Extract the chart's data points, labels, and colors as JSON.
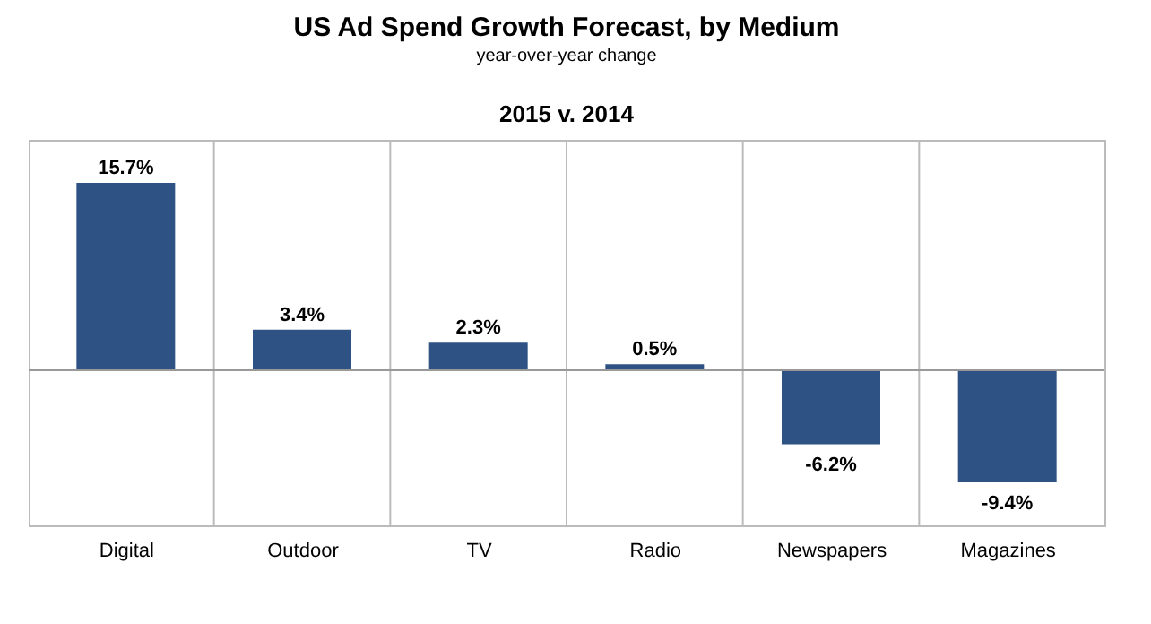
{
  "chart_data": {
    "type": "bar",
    "title": "US Ad Spend Growth Forecast, by Medium",
    "subtitle": "year-over-year change",
    "annotations": [
      "2015 v. 2014"
    ],
    "categories": [
      "Digital",
      "Outdoor",
      "TV",
      "Radio",
      "Newspapers",
      "Magazines"
    ],
    "values": [
      15.7,
      3.4,
      2.3,
      0.5,
      -6.2,
      -9.4
    ],
    "color": "#2e5283",
    "value_labels": [
      "15.7%",
      "3.4%",
      "2.3%",
      "0.5%",
      "-6.2%",
      "-9.4%"
    ],
    "grid": "x"
  }
}
